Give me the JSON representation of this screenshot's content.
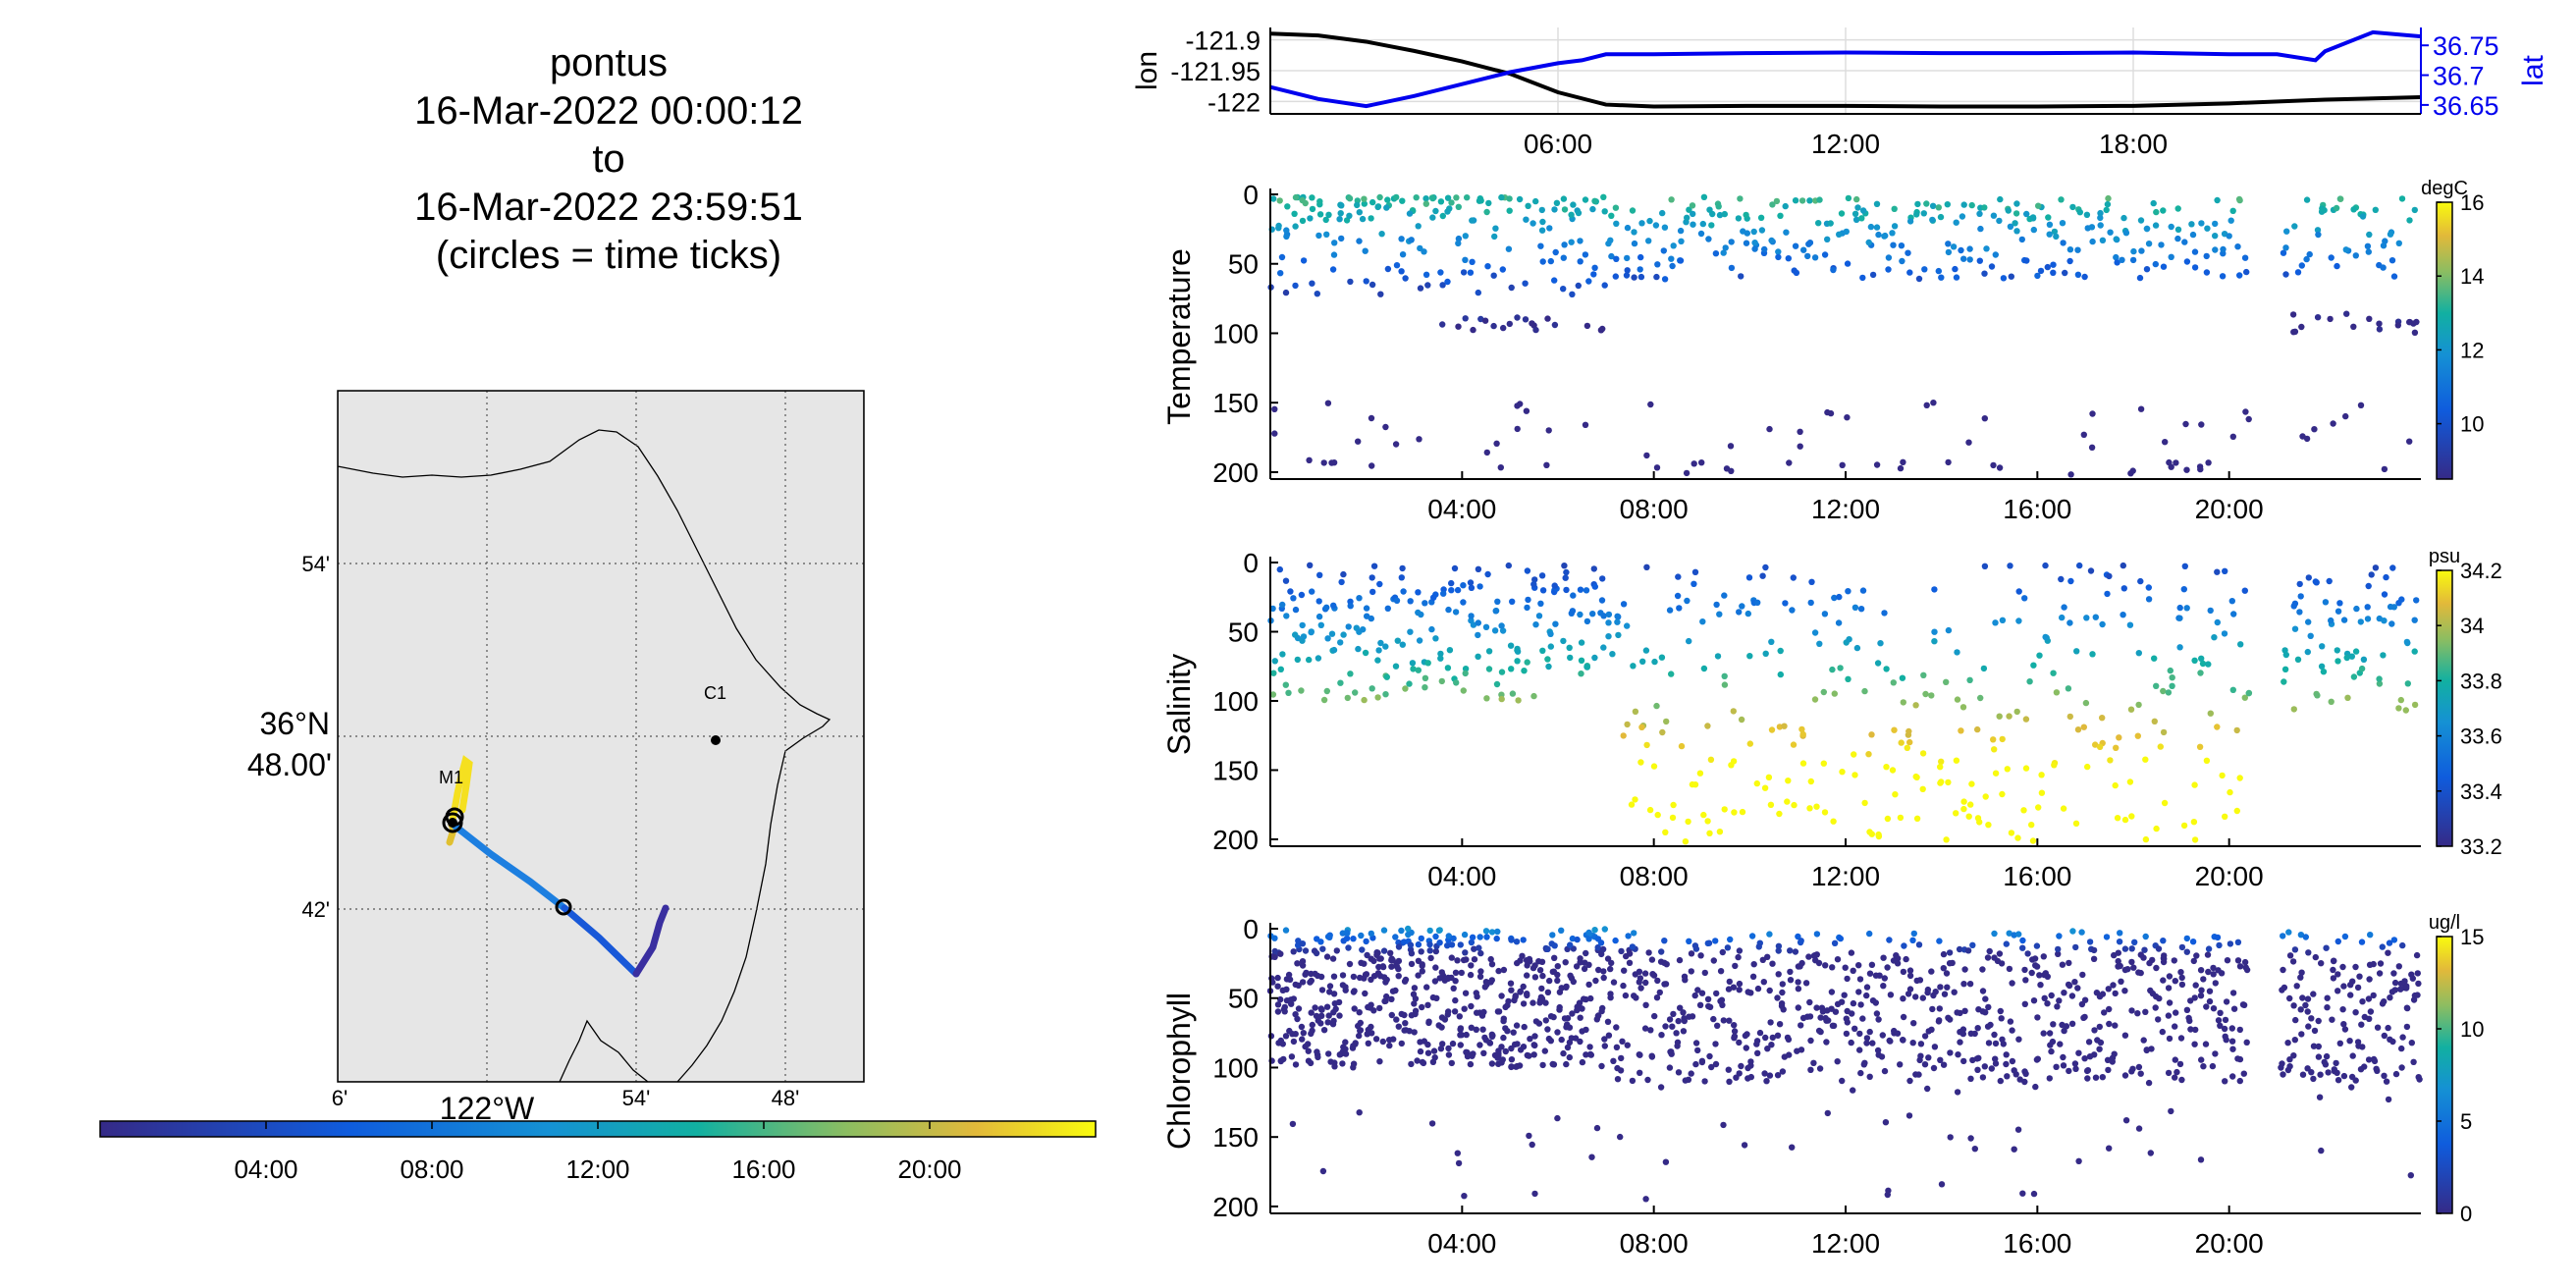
{
  "header": {
    "vehicle": "pontus",
    "start": "16-Mar-2022 00:00:12",
    "to": "to",
    "end": "16-Mar-2022 23:59:51",
    "note": "(circles = time ticks)"
  },
  "map": {
    "lat_labels": [
      "54'",
      "42'"
    ],
    "lat_main": [
      "36°N",
      "48.00'"
    ],
    "lon_labels": [
      "6'",
      "54'",
      "48'"
    ],
    "lon_main": "122°W",
    "stations": [
      {
        "name": "C1"
      },
      {
        "name": "M1"
      }
    ],
    "land_color": "#e6e6e6"
  },
  "time_colorbar": {
    "ticks": [
      "04:00",
      "08:00",
      "12:00",
      "16:00",
      "20:00"
    ]
  },
  "chart_data": [
    {
      "type": "line",
      "name": "position",
      "x_ticks": [
        "06:00",
        "12:00",
        "18:00"
      ],
      "ylabel_left": "lon",
      "ylabel_right": "lat",
      "ylim_left": [
        -122.02,
        -121.88
      ],
      "ylim_right": [
        36.635,
        36.78
      ],
      "yticks_left": [
        "-121.9",
        "-121.95",
        "-122"
      ],
      "yticks_right": [
        "36.75",
        "36.7",
        "36.65"
      ],
      "lon_color": "#000000",
      "lat_color": "#0000ee",
      "series": [
        {
          "name": "lon",
          "hours": [
            0,
            1,
            2,
            3,
            4,
            5,
            6,
            7,
            8,
            10,
            12,
            14,
            16,
            18,
            20,
            22,
            24
          ],
          "values": [
            -121.89,
            -121.893,
            -121.903,
            -121.918,
            -121.935,
            -121.955,
            -121.985,
            -122.005,
            -122.008,
            -122.007,
            -122.007,
            -122.008,
            -122.008,
            -122.007,
            -122.003,
            -121.997,
            -121.993
          ]
        },
        {
          "name": "lat",
          "hours": [
            0,
            1,
            2,
            3,
            4,
            5,
            6,
            6.5,
            7,
            8,
            10,
            12,
            14,
            16,
            18,
            20,
            21,
            21.8,
            22,
            23,
            24
          ],
          "values": [
            36.68,
            36.66,
            36.648,
            36.665,
            36.685,
            36.705,
            36.72,
            36.725,
            36.735,
            36.735,
            36.737,
            36.738,
            36.737,
            36.737,
            36.738,
            36.735,
            36.735,
            36.725,
            36.74,
            36.772,
            36.765
          ]
        }
      ]
    },
    {
      "type": "scatter",
      "name": "temperature",
      "ylabel": "Temperature",
      "unit": "degC",
      "x_ticks": [
        "04:00",
        "08:00",
        "12:00",
        "16:00",
        "20:00"
      ],
      "ylim": [
        0,
        205
      ],
      "yticks": [
        "0",
        "50",
        "100",
        "150",
        "200"
      ],
      "clim": [
        8.5,
        16
      ],
      "cticks": [
        "16",
        "14",
        "12",
        "10"
      ],
      "cticks_values": [
        16,
        14,
        12,
        10
      ]
    },
    {
      "type": "scatter",
      "name": "salinity",
      "ylabel": "Salinity",
      "unit": "psu",
      "x_ticks": [
        "04:00",
        "08:00",
        "12:00",
        "16:00",
        "20:00"
      ],
      "ylim": [
        0,
        205
      ],
      "yticks": [
        "0",
        "50",
        "100",
        "150",
        "200"
      ],
      "clim": [
        33.2,
        34.2
      ],
      "cticks": [
        "34.2",
        "34",
        "33.8",
        "33.6",
        "33.4",
        "33.2"
      ],
      "cticks_values": [
        34.2,
        34.0,
        33.8,
        33.6,
        33.4,
        33.2
      ]
    },
    {
      "type": "scatter",
      "name": "chlorophyll",
      "ylabel": "Chlorophyll",
      "unit": "ug/l",
      "x_ticks": [
        "04:00",
        "08:00",
        "12:00",
        "16:00",
        "20:00"
      ],
      "ylim": [
        0,
        205
      ],
      "yticks": [
        "0",
        "50",
        "100",
        "150",
        "200"
      ],
      "clim": [
        0,
        15
      ],
      "cticks": [
        "15",
        "10",
        "5",
        "0"
      ],
      "cticks_values": [
        15,
        10,
        5,
        0
      ]
    }
  ]
}
